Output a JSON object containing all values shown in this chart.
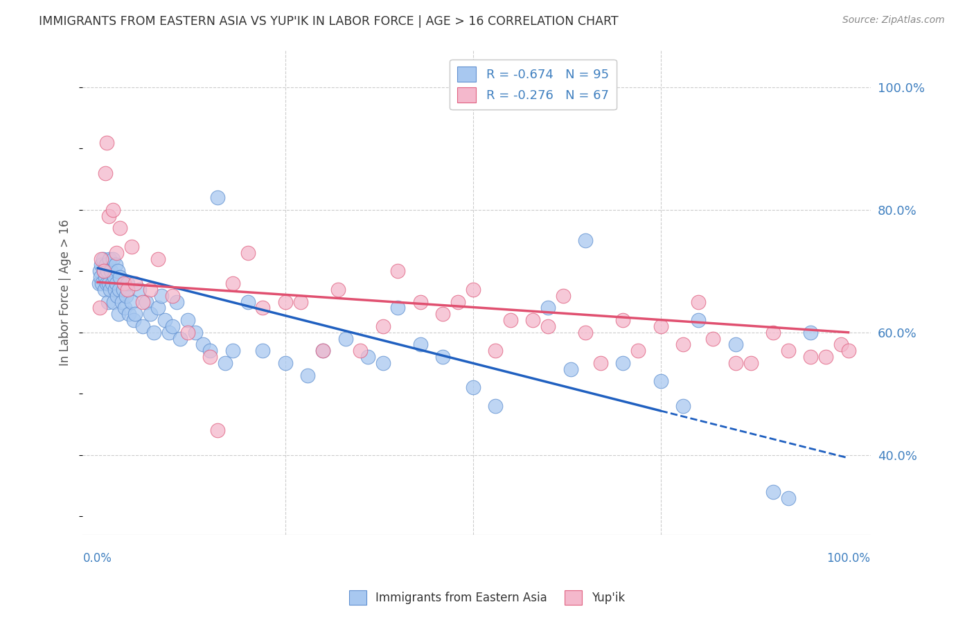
{
  "title": "IMMIGRANTS FROM EASTERN ASIA VS YUP'IK IN LABOR FORCE | AGE > 16 CORRELATION CHART",
  "source": "Source: ZipAtlas.com",
  "ylabel": "In Labor Force | Age > 16",
  "legend_label1": "Immigrants from Eastern Asia",
  "legend_label2": "Yup'ik",
  "r1": -0.674,
  "n1": 95,
  "r2": -0.276,
  "n2": 67,
  "color_blue_fill": "#A8C8F0",
  "color_pink_fill": "#F4B8CC",
  "color_blue_edge": "#6090D0",
  "color_pink_edge": "#E06080",
  "color_blue_line": "#2060C0",
  "color_pink_line": "#E05070",
  "color_title": "#333333",
  "color_source": "#888888",
  "color_axis_blue": "#4080C0",
  "ytick_values": [
    0.4,
    0.6,
    0.8,
    1.0
  ],
  "ytick_labels": [
    "40.0%",
    "60.0%",
    "80.0%",
    "100.0%"
  ],
  "ylim": [
    0.27,
    1.06
  ],
  "xlim": [
    -2.0,
    103.0
  ],
  "blue_line_y0": 0.705,
  "blue_line_y75": 0.472,
  "blue_line_y100": 0.395,
  "pink_line_y0": 0.682,
  "pink_line_y100": 0.6,
  "blue_x": [
    0.2,
    0.3,
    0.4,
    0.5,
    0.6,
    0.7,
    0.8,
    0.9,
    1.0,
    1.1,
    1.2,
    1.3,
    1.4,
    1.5,
    1.6,
    1.7,
    1.8,
    1.9,
    2.0,
    2.1,
    2.2,
    2.3,
    2.4,
    2.5,
    2.6,
    2.7,
    2.8,
    2.9,
    3.0,
    3.2,
    3.4,
    3.6,
    3.8,
    4.0,
    4.2,
    4.5,
    4.8,
    5.0,
    5.5,
    6.0,
    6.5,
    7.0,
    7.5,
    8.0,
    8.5,
    9.0,
    9.5,
    10.0,
    10.5,
    11.0,
    12.0,
    13.0,
    14.0,
    15.0,
    16.0,
    17.0,
    18.0,
    20.0,
    22.0,
    25.0,
    28.0,
    30.0,
    33.0,
    36.0,
    38.0,
    40.0,
    43.0,
    46.0,
    50.0,
    53.0,
    60.0,
    63.0,
    65.0,
    70.0,
    75.0,
    78.0,
    80.0,
    85.0,
    90.0,
    92.0,
    95.0
  ],
  "blue_y": [
    0.68,
    0.7,
    0.69,
    0.71,
    0.68,
    0.72,
    0.7,
    0.67,
    0.69,
    0.71,
    0.68,
    0.7,
    0.65,
    0.68,
    0.72,
    0.67,
    0.7,
    0.68,
    0.72,
    0.65,
    0.69,
    0.67,
    0.71,
    0.68,
    0.66,
    0.7,
    0.63,
    0.67,
    0.69,
    0.65,
    0.67,
    0.64,
    0.66,
    0.68,
    0.63,
    0.65,
    0.62,
    0.63,
    0.67,
    0.61,
    0.65,
    0.63,
    0.6,
    0.64,
    0.66,
    0.62,
    0.6,
    0.61,
    0.65,
    0.59,
    0.62,
    0.6,
    0.58,
    0.57,
    0.82,
    0.55,
    0.57,
    0.65,
    0.57,
    0.55,
    0.53,
    0.57,
    0.59,
    0.56,
    0.55,
    0.64,
    0.58,
    0.56,
    0.51,
    0.48,
    0.64,
    0.54,
    0.75,
    0.55,
    0.52,
    0.48,
    0.62,
    0.58,
    0.34,
    0.33,
    0.6
  ],
  "pink_x": [
    0.3,
    0.5,
    0.8,
    1.0,
    1.2,
    1.5,
    2.0,
    2.5,
    3.0,
    3.5,
    4.0,
    4.5,
    5.0,
    6.0,
    7.0,
    8.0,
    10.0,
    12.0,
    15.0,
    16.0,
    18.0,
    20.0,
    22.0,
    25.0,
    27.0,
    30.0,
    32.0,
    35.0,
    38.0,
    40.0,
    43.0,
    46.0,
    48.0,
    50.0,
    53.0,
    55.0,
    58.0,
    60.0,
    62.0,
    65.0,
    67.0,
    70.0,
    72.0,
    75.0,
    78.0,
    80.0,
    82.0,
    85.0,
    87.0,
    90.0,
    92.0,
    95.0,
    97.0,
    99.0,
    100.0
  ],
  "pink_y": [
    0.64,
    0.72,
    0.7,
    0.86,
    0.91,
    0.79,
    0.8,
    0.73,
    0.77,
    0.68,
    0.67,
    0.74,
    0.68,
    0.65,
    0.67,
    0.72,
    0.66,
    0.6,
    0.56,
    0.44,
    0.68,
    0.73,
    0.64,
    0.65,
    0.65,
    0.57,
    0.67,
    0.57,
    0.61,
    0.7,
    0.65,
    0.63,
    0.65,
    0.67,
    0.57,
    0.62,
    0.62,
    0.61,
    0.66,
    0.6,
    0.55,
    0.62,
    0.57,
    0.61,
    0.58,
    0.65,
    0.59,
    0.55,
    0.55,
    0.6,
    0.57,
    0.56,
    0.56,
    0.58,
    0.57
  ]
}
